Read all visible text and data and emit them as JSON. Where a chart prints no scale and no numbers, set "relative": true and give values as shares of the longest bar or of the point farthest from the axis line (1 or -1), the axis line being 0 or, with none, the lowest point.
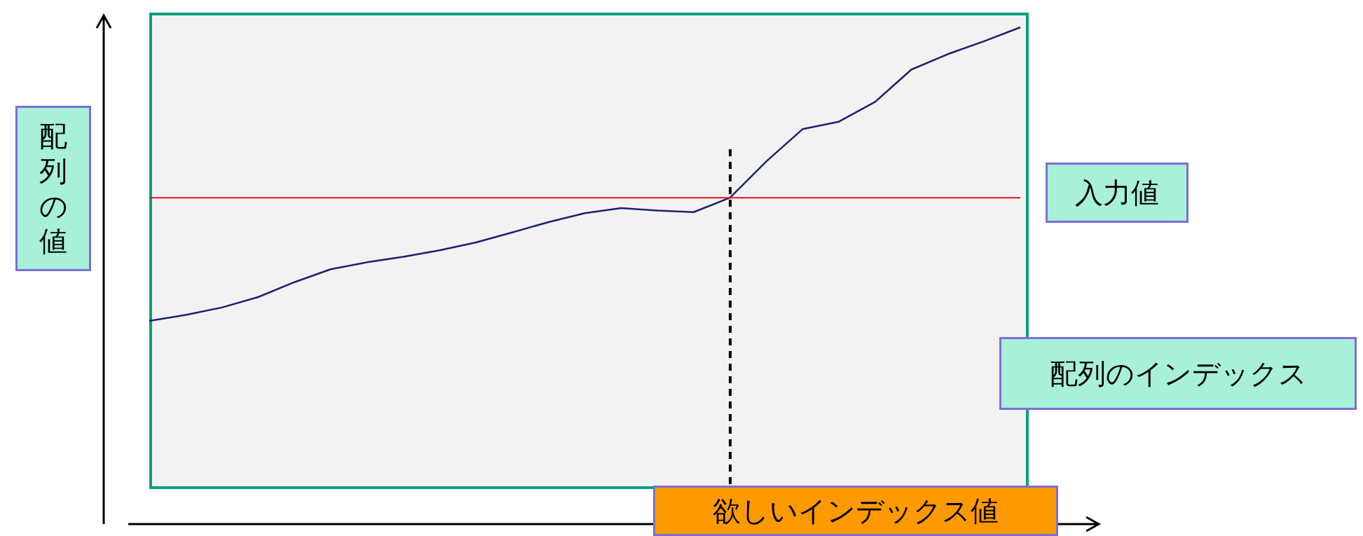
{
  "chart_data": {
    "type": "line",
    "xlabel": "配列のインデックス",
    "ylabel": "配列の値",
    "relative": true,
    "tick_labels": false,
    "categories": [
      null,
      null,
      null,
      null,
      null,
      null,
      null,
      null,
      null,
      null,
      null,
      null,
      null,
      null,
      null,
      null,
      null,
      null,
      null,
      null,
      null,
      null,
      null,
      null,
      null
    ],
    "series": [
      {
        "color": "#1f1f6e",
        "values": [
          0.409,
          0.421,
          0.436,
          0.457,
          0.487,
          0.513,
          0.527,
          0.538,
          0.551,
          0.567,
          0.587,
          0.608,
          0.626,
          0.636,
          0.631,
          0.628,
          0.657,
          0.73,
          0.795,
          0.81,
          0.85,
          0.915,
          0.946,
          0.972,
          1
        ]
      }
    ],
    "ref_lines": [
      {
        "axis": "y",
        "value": 0.657,
        "label": "入力値",
        "color": "#e8141e",
        "line_style": "solid"
      }
    ],
    "annotations": [
      "欲しいインデックス値"
    ]
  }
}
